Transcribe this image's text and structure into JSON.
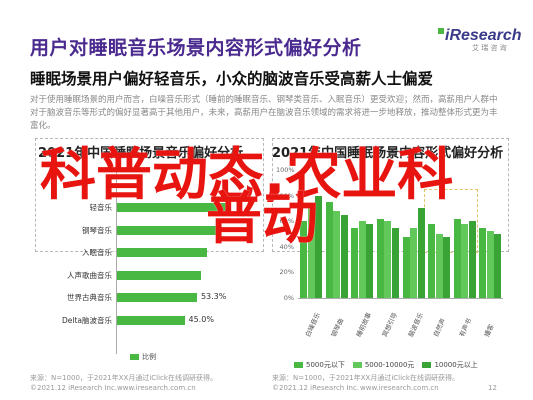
{
  "header": {
    "title": "用户对睡眠音乐场景内容形式偏好分析",
    "logo_main": "iResearch",
    "logo_sub": "艾 瑞 咨 询"
  },
  "subtitle": "睡眠场景用户偏好轻音乐，小众的脑波音乐受高薪人士偏爱",
  "paragraph": "对于使用睡眠场景的用户而言，白噪音乐形式（睡前的睡眠音乐、钢琴类音乐、入眠音乐）更受欢迎；然而，高薪用户人群中对于脑波音乐等形式的偏好显著高于其他用户，未来，高薪用户在脑波音乐领域的需求将进一步地释放，推动整体形式更为丰富化。",
  "left_panel": {
    "title": "2021年中国睡眠场景音乐偏好分析"
  },
  "right_panel": {
    "title": "2021年中国睡眠场景内容形式偏好分析"
  },
  "overlay": {
    "line1": "科普动态,农业科",
    "line2": "普动"
  },
  "chart_data": [
    {
      "type": "bar",
      "orientation": "horizontal",
      "title": "2021年中国睡眠场景音乐偏好分析",
      "categories": [
        "轻音乐",
        "钢琴音乐",
        "入眠音乐",
        "人声歌曲音乐",
        "世界古典音乐",
        "Delta脑波音乐"
      ],
      "series": [
        {
          "values": [
            75.0,
            66.0,
            60.0,
            56.0,
            53.3,
            45.0
          ]
        }
      ],
      "value_labels": [
        "",
        "",
        "",
        "",
        "53.3%",
        "45.0%"
      ],
      "legend": "比例"
    },
    {
      "type": "bar",
      "title": "2021年中国睡眠场景内容形式偏好分析",
      "categories": [
        "白噪音乐",
        "钢琴曲",
        "睡前故事",
        "冥想引导",
        "脑波音乐",
        "自然声",
        "有声书",
        "播客"
      ],
      "series": [
        {
          "name": "5000元以下",
          "values": [
            60,
            75,
            55,
            62,
            48,
            58,
            62,
            55
          ]
        },
        {
          "name": "5000-10000元",
          "values": [
            70,
            68,
            60,
            60,
            55,
            50,
            58,
            52
          ]
        },
        {
          "name": "10000元以上",
          "values": [
            80,
            65,
            58,
            55,
            70,
            48,
            60,
            50
          ]
        }
      ],
      "ylim": [
        0,
        100
      ],
      "yticks": [
        "100%",
        "80%",
        "60%",
        "40%",
        "20%",
        "0%"
      ]
    }
  ],
  "footer": {
    "left_source": "来源：N=1000，于2021年XX月通过iClick在线调研获得。",
    "left_copyright": "©2021.12 iResearch Inc.",
    "left_site": "www.iresearch.com.cn",
    "right_source": "来源：N=1000，于2021年XX月通过iClick在线调研获得。",
    "right_copyright": "©2021.12 iResearch Inc.",
    "right_site": "www.iresearch.com.cn",
    "page_number": "12"
  }
}
